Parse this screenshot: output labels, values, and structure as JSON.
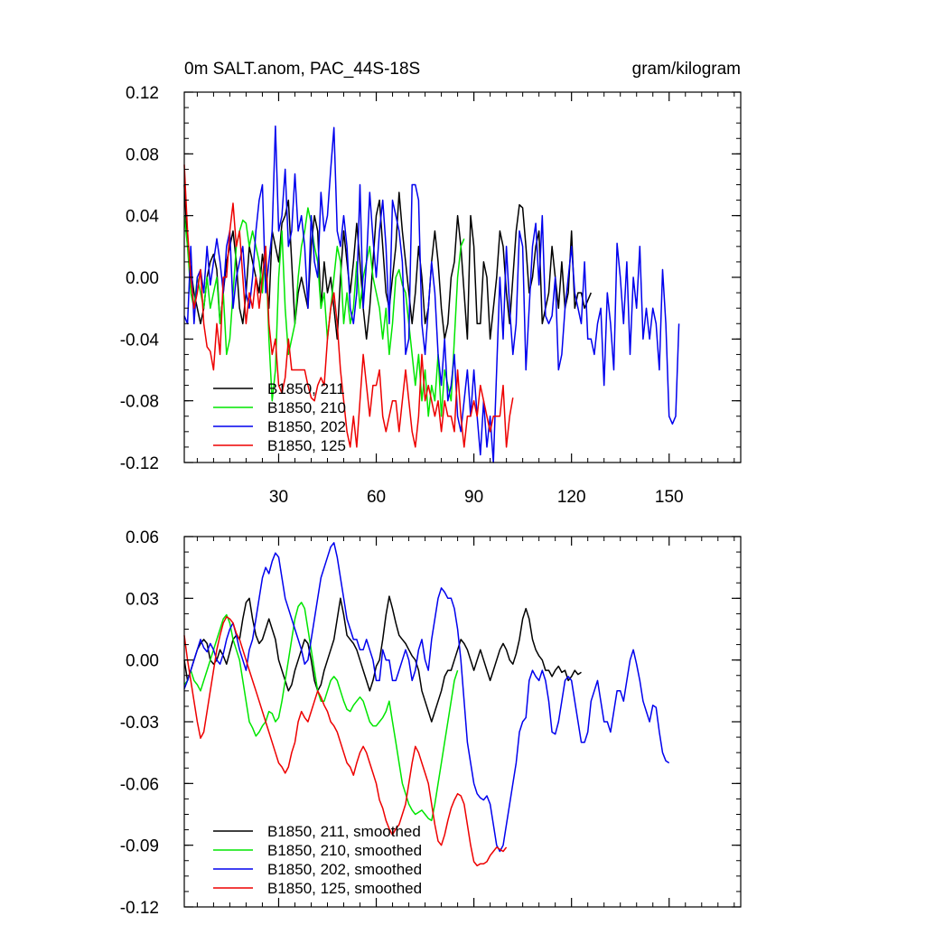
{
  "chart_data": [
    {
      "type": "line",
      "title_left": "0m SALT.anom, PAC_44S-18S",
      "title_right": "gram/kilogram",
      "xlabel": "",
      "ylabel": "",
      "xlim": [
        1,
        172
      ],
      "ylim": [
        -0.12,
        0.12
      ],
      "x_ticks": [
        30,
        60,
        90,
        120,
        150
      ],
      "y_ticks": [
        "0.12",
        "0.08",
        "0.04",
        "0.00",
        "-0.04",
        "-0.08",
        "-0.12"
      ],
      "y_tick_values": [
        0.12,
        0.08,
        0.04,
        0.0,
        -0.04,
        -0.08,
        -0.12
      ],
      "legend_position": "bottom-left",
      "series": [
        {
          "name": "B1850, 211",
          "color": "#000000",
          "values": [
            0.06,
            0.02,
            0.005,
            -0.01,
            -0.02,
            -0.03,
            -0.02,
            0.0,
            0.01,
            0.015,
            0.005,
            -0.03,
            -0.01,
            0.01,
            0.02,
            0.03,
            0.01,
            -0.02,
            -0.03,
            -0.01,
            0.02,
            0.01,
            0.0,
            -0.01,
            0.015,
            0.0,
            -0.02,
            0.03,
            0.02,
            0.01,
            0.035,
            0.04,
            0.05,
            0.01,
            -0.03,
            -0.01,
            0.0,
            -0.01,
            -0.02,
            0.02,
            0.04,
            0.03,
            -0.02,
            0.01,
            -0.01,
            0.0,
            -0.02,
            -0.04,
            0.0,
            0.03,
            0.01,
            -0.01,
            0.01,
            0.035,
            0.01,
            -0.02,
            -0.04,
            -0.02,
            0.01,
            0.04,
            0.05,
            0.02,
            -0.01,
            -0.02,
            0.0,
            0.02,
            0.055,
            0.03,
            0.01,
            -0.01,
            -0.03,
            -0.01,
            0.02,
            0.0,
            -0.03,
            -0.02,
            0.01,
            0.03,
            0.01,
            -0.02,
            -0.04,
            -0.03,
            0.0,
            0.01,
            0.04,
            0.02,
            -0.01,
            -0.04,
            0.04,
            0.02,
            -0.03,
            -0.03,
            0.01,
            0.0,
            -0.04,
            -0.02,
            0.0,
            0.03,
            0.02,
            -0.01,
            -0.03,
            0.0,
            0.03,
            0.047,
            0.045,
            0.02,
            -0.01,
            0.0,
            0.02,
            0.03,
            -0.03,
            -0.02,
            -0.01,
            0.02,
            0.0,
            -0.02,
            0.01,
            -0.02,
            -0.01,
            0.03,
            -0.02,
            -0.01,
            -0.01,
            -0.02,
            -0.015,
            -0.01
          ]
        },
        {
          "name": "B1850, 210",
          "color": "#00e600",
          "values": [
            0.04,
            0.02,
            -0.01,
            -0.02,
            0.0,
            -0.01,
            -0.02,
            0.0,
            -0.02,
            -0.01,
            0.0,
            -0.03,
            -0.01,
            -0.05,
            -0.04,
            -0.01,
            0.02,
            0.03,
            0.037,
            0.035,
            0.02,
            0.03,
            0.02,
            0.01,
            -0.01,
            0.02,
            -0.04,
            -0.08,
            -0.06,
            0.0,
            0.03,
            -0.02,
            -0.05,
            -0.04,
            -0.03,
            0.0,
            0.02,
            0.03,
            0.045,
            0.035,
            0.02,
            0.01,
            -0.02,
            -0.01,
            -0.04,
            -0.02,
            0.0,
            0.02,
            0.01,
            -0.03,
            -0.01,
            -0.03,
            -0.02,
            0.01,
            -0.02,
            0.0,
            0.01,
            0.02,
            0.0,
            -0.01,
            -0.02,
            -0.04,
            -0.02,
            -0.05,
            -0.03,
            0.0,
            0.005,
            -0.005,
            -0.01,
            -0.03,
            -0.05,
            -0.07,
            -0.05,
            -0.08,
            -0.06,
            -0.09,
            -0.07,
            -0.08,
            -0.05,
            -0.09,
            -0.06,
            -0.07,
            -0.08,
            -0.04,
            0.0,
            0.02,
            0.025
          ]
        },
        {
          "name": "B1850, 202",
          "color": "#0000ee",
          "values": [
            -0.025,
            -0.03,
            0.02,
            -0.03,
            0.0,
            0.005,
            -0.01,
            0.02,
            -0.005,
            0.01,
            0.025,
            0.01,
            -0.01,
            0.02,
            0.03,
            -0.02,
            0.0,
            0.01,
            0.02,
            -0.01,
            -0.02,
            0.0,
            0.03,
            0.05,
            0.06,
            -0.01,
            0.01,
            0.03,
            0.098,
            0.03,
            0.04,
            0.07,
            0.02,
            0.03,
            0.067,
            0.03,
            0.04,
            0.02,
            -0.02,
            0.04,
            0.01,
            0.0,
            0.055,
            0.03,
            0.04,
            0.07,
            0.097,
            0.03,
            0.02,
            0.04,
            0.02,
            -0.02,
            -0.03,
            -0.01,
            0.06,
            -0.02,
            0.01,
            0.055,
            0.025,
            0.0,
            0.03,
            0.05,
            0.02,
            -0.03,
            0.05,
            0.04,
            0.03,
            0.01,
            -0.05,
            -0.04,
            0.06,
            0.06,
            0.05,
            -0.03,
            -0.05,
            -0.02,
            0.01,
            -0.01,
            -0.05,
            -0.07,
            -0.04,
            -0.08,
            -0.07,
            -0.05,
            -0.09,
            -0.1,
            -0.08,
            -0.06,
            -0.09,
            -0.06,
            -0.09,
            -0.115,
            -0.08,
            -0.11,
            -0.09,
            -0.12,
            -0.06,
            0.0,
            -0.04,
            0.02,
            -0.02,
            -0.05,
            -0.03,
            0.03,
            0.02,
            -0.06,
            -0.02,
            0.02,
            0.035,
            -0.005,
            0.04,
            -0.025,
            -0.03,
            -0.025,
            0.0,
            -0.06,
            -0.05,
            -0.02,
            0.0,
            0.02,
            -0.01,
            -0.02,
            -0.03,
            0.01,
            -0.04,
            -0.04,
            -0.05,
            -0.03,
            -0.02,
            -0.07,
            -0.01,
            -0.03,
            -0.06,
            0.022,
            0.0,
            -0.03,
            0.01,
            -0.05,
            0.0,
            -0.02,
            0.02,
            -0.04,
            -0.02,
            -0.04,
            -0.02,
            -0.03,
            -0.06,
            0.005,
            -0.03,
            -0.09,
            -0.095,
            -0.09,
            -0.03
          ]
        },
        {
          "name": "B1850, 125",
          "color": "#ee0000",
          "values": [
            0.073,
            0.03,
            0.0,
            -0.02,
            -0.01,
            0.005,
            -0.03,
            -0.045,
            -0.048,
            -0.06,
            -0.03,
            -0.05,
            0.0,
            0.0,
            0.03,
            0.048,
            0.02,
            0.03,
            0.0,
            -0.03,
            -0.01,
            -0.02,
            0.0,
            -0.02,
            0.0,
            0.02,
            -0.03,
            -0.05,
            -0.04,
            -0.07,
            -0.075,
            -0.065,
            -0.04,
            -0.06,
            -0.06,
            -0.06,
            -0.06,
            -0.06,
            -0.07,
            -0.078,
            -0.08,
            -0.07,
            -0.065,
            -0.07,
            -0.04,
            -0.02,
            -0.01,
            -0.03,
            -0.06,
            -0.08,
            -0.1,
            -0.11,
            -0.09,
            -0.11,
            -0.08,
            -0.05,
            -0.07,
            -0.09,
            -0.07,
            -0.07,
            -0.06,
            -0.09,
            -0.1,
            -0.09,
            -0.08,
            -0.08,
            -0.1,
            -0.08,
            -0.06,
            -0.08,
            -0.1,
            -0.11,
            -0.09,
            -0.05,
            -0.08,
            -0.07,
            -0.08,
            -0.09,
            -0.08,
            -0.1,
            -0.08,
            -0.09,
            -0.09,
            -0.1,
            -0.06,
            -0.09,
            -0.11,
            -0.09,
            -0.09,
            -0.08,
            -0.09,
            -0.07,
            -0.08,
            -0.09,
            -0.1,
            -0.09,
            -0.09,
            -0.09,
            -0.07,
            -0.11,
            -0.09,
            -0.078
          ]
        }
      ]
    },
    {
      "type": "line",
      "title_left": "",
      "title_right": "",
      "xlabel": "",
      "ylabel": "",
      "xlim": [
        1,
        172
      ],
      "ylim": [
        -0.12,
        0.06
      ],
      "x_ticks": [
        30,
        60,
        90,
        120,
        150
      ],
      "y_ticks": [
        "0.06",
        "0.03",
        "0.00",
        "-0.03",
        "-0.06",
        "-0.09",
        "-0.12"
      ],
      "y_tick_values": [
        0.06,
        0.03,
        0.0,
        -0.03,
        -0.06,
        -0.09,
        -0.12
      ],
      "legend_position": "bottom-left",
      "series": [
        {
          "name": "B1850, 211, smoothed",
          "color": "#000000",
          "values": [
            0.0,
            -0.01,
            -0.005,
            0.0,
            0.005,
            0.008,
            0.01,
            0.008,
            0.0,
            -0.002,
            0.0,
            0.005,
            0.002,
            -0.002,
            0.004,
            0.01,
            0.012,
            0.01,
            0.02,
            0.028,
            0.03,
            0.02,
            0.012,
            0.008,
            0.01,
            0.015,
            0.02,
            0.015,
            0.01,
            0.0,
            -0.005,
            -0.01,
            -0.015,
            -0.012,
            -0.005,
            0.0,
            0.005,
            0.01,
            0.008,
            0.0,
            -0.01,
            -0.015,
            -0.012,
            -0.005,
            0.0,
            0.005,
            0.01,
            0.02,
            0.03,
            0.022,
            0.012,
            0.01,
            0.008,
            0.005,
            0.0,
            -0.005,
            -0.01,
            -0.015,
            -0.01,
            -0.003,
            0.0,
            0.01,
            0.022,
            0.031,
            0.025,
            0.018,
            0.012,
            0.01,
            0.008,
            0.005,
            0.002,
            0.0,
            -0.005,
            -0.015,
            -0.02,
            -0.025,
            -0.03,
            -0.025,
            -0.02,
            -0.015,
            -0.008,
            -0.005,
            -0.005,
            0.0,
            0.005,
            0.01,
            0.008,
            0.005,
            0.0,
            -0.005,
            0.0,
            0.005,
            0.0,
            -0.005,
            -0.01,
            -0.005,
            0.0,
            0.005,
            0.008,
            0.005,
            0.0,
            -0.002,
            0.003,
            0.01,
            0.02,
            0.025,
            0.02,
            0.01,
            0.005,
            0.002,
            0.0,
            -0.005,
            -0.005,
            -0.008,
            -0.005,
            -0.003,
            -0.006,
            -0.005,
            -0.01,
            -0.008,
            -0.005,
            -0.007,
            -0.006
          ]
        },
        {
          "name": "B1850, 210, smoothed",
          "color": "#00e600",
          "values": [
            -0.012,
            -0.01,
            -0.005,
            -0.01,
            -0.012,
            -0.015,
            -0.01,
            -0.005,
            0.0,
            0.005,
            0.01,
            0.015,
            0.02,
            0.022,
            0.018,
            0.01,
            0.005,
            0.0,
            -0.01,
            -0.02,
            -0.03,
            -0.033,
            -0.037,
            -0.035,
            -0.032,
            -0.03,
            -0.025,
            -0.026,
            -0.03,
            -0.028,
            -0.02,
            -0.01,
            0.0,
            0.01,
            0.02,
            0.026,
            0.028,
            0.025,
            0.015,
            0.005,
            -0.005,
            -0.015,
            -0.02,
            -0.02,
            -0.015,
            -0.01,
            -0.008,
            -0.01,
            -0.015,
            -0.02,
            -0.024,
            -0.025,
            -0.022,
            -0.02,
            -0.018,
            -0.02,
            -0.025,
            -0.03,
            -0.032,
            -0.032,
            -0.03,
            -0.028,
            -0.025,
            -0.02,
            -0.03,
            -0.04,
            -0.05,
            -0.06,
            -0.065,
            -0.07,
            -0.073,
            -0.075,
            -0.074,
            -0.073,
            -0.075,
            -0.077,
            -0.078,
            -0.07,
            -0.06,
            -0.05,
            -0.04,
            -0.03,
            -0.02,
            -0.01,
            -0.005
          ]
        },
        {
          "name": "B1850, 202, smoothed",
          "color": "#0000ee",
          "values": [
            -0.014,
            -0.01,
            -0.005,
            0.0,
            0.005,
            0.01,
            0.006,
            0.004,
            0.008,
            0.005,
            0.0,
            -0.002,
            0.003,
            0.01,
            0.015,
            0.018,
            0.012,
            0.005,
            0.0,
            -0.005,
            0.005,
            0.01,
            0.02,
            0.03,
            0.04,
            0.045,
            0.042,
            0.048,
            0.052,
            0.05,
            0.04,
            0.03,
            0.025,
            0.02,
            0.015,
            0.01,
            0.005,
            -0.002,
            0.0,
            0.01,
            0.02,
            0.03,
            0.04,
            0.045,
            0.05,
            0.055,
            0.057,
            0.05,
            0.04,
            0.03,
            0.02,
            0.015,
            0.01,
            0.01,
            0.005,
            0.005,
            0.01,
            0.005,
            0.0,
            -0.01,
            -0.01,
            0.005,
            0.0,
            0.0,
            -0.01,
            -0.01,
            -0.005,
            0.0,
            0.005,
            0.0,
            -0.01,
            -0.005,
            0.005,
            0.01,
            0.0,
            -0.005,
            0.01,
            0.02,
            0.03,
            0.035,
            0.033,
            0.03,
            0.03,
            0.025,
            0.015,
            0.0,
            -0.02,
            -0.04,
            -0.05,
            -0.06,
            -0.065,
            -0.067,
            -0.068,
            -0.066,
            -0.07,
            -0.08,
            -0.09,
            -0.093,
            -0.09,
            -0.08,
            -0.07,
            -0.06,
            -0.05,
            -0.035,
            -0.03,
            -0.028,
            -0.01,
            -0.005,
            -0.008,
            -0.01,
            -0.005,
            -0.01,
            -0.02,
            -0.035,
            -0.036,
            -0.03,
            -0.02,
            -0.01,
            -0.008,
            -0.01,
            -0.02,
            -0.03,
            -0.04,
            -0.04,
            -0.035,
            -0.02,
            -0.015,
            -0.01,
            -0.02,
            -0.03,
            -0.03,
            -0.035,
            -0.025,
            -0.015,
            -0.015,
            -0.02,
            -0.01,
            0.0,
            0.005,
            -0.002,
            -0.01,
            -0.02,
            -0.025,
            -0.03,
            -0.022,
            -0.023,
            -0.035,
            -0.045,
            -0.049,
            -0.05
          ]
        },
        {
          "name": "B1850, 125, smoothed",
          "color": "#ee0000",
          "values": [
            0.012,
            0.0,
            -0.01,
            -0.02,
            -0.03,
            -0.038,
            -0.035,
            -0.025,
            -0.015,
            -0.005,
            0.005,
            0.012,
            0.018,
            0.021,
            0.02,
            0.018,
            0.013,
            0.01,
            0.005,
            0.0,
            -0.005,
            -0.01,
            -0.015,
            -0.02,
            -0.025,
            -0.03,
            -0.035,
            -0.04,
            -0.045,
            -0.05,
            -0.052,
            -0.055,
            -0.052,
            -0.045,
            -0.04,
            -0.03,
            -0.025,
            -0.028,
            -0.03,
            -0.025,
            -0.02,
            -0.015,
            -0.018,
            -0.022,
            -0.025,
            -0.03,
            -0.032,
            -0.035,
            -0.04,
            -0.045,
            -0.05,
            -0.052,
            -0.056,
            -0.05,
            -0.045,
            -0.042,
            -0.045,
            -0.05,
            -0.055,
            -0.06,
            -0.068,
            -0.072,
            -0.078,
            -0.082,
            -0.085,
            -0.082,
            -0.08,
            -0.075,
            -0.07,
            -0.06,
            -0.05,
            -0.042,
            -0.045,
            -0.05,
            -0.055,
            -0.06,
            -0.07,
            -0.08,
            -0.088,
            -0.09,
            -0.085,
            -0.078,
            -0.072,
            -0.068,
            -0.065,
            -0.066,
            -0.07,
            -0.08,
            -0.09,
            -0.098,
            -0.1,
            -0.099,
            -0.099,
            -0.098,
            -0.095,
            -0.093,
            -0.091,
            -0.092,
            -0.093,
            -0.091
          ]
        }
      ]
    }
  ]
}
